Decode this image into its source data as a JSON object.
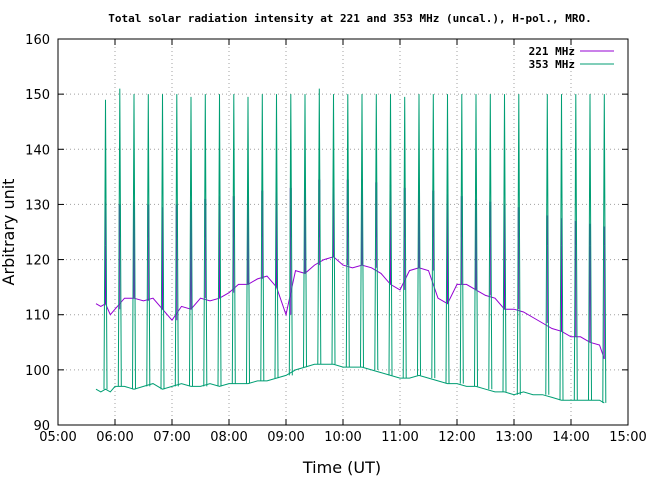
{
  "chart_data": {
    "type": "line",
    "title": "Total solar radiation intensity at 221 and 353 MHz (uncal.), H-pol., MRO.",
    "xlabel": "Time (UT)",
    "ylabel": "Arbitrary unit",
    "xlim": [
      "05:00",
      "15:00"
    ],
    "ylim": [
      90,
      160
    ],
    "x_ticks": [
      "05:00",
      "06:00",
      "07:00",
      "08:00",
      "09:00",
      "10:00",
      "11:00",
      "12:00",
      "13:00",
      "14:00",
      "15:00"
    ],
    "y_ticks": [
      "90",
      "100",
      "110",
      "120",
      "130",
      "140",
      "150",
      "160"
    ],
    "grid": true,
    "legend_position": "top-right",
    "colors": {
      "221 MHz": "#9400d3",
      "353 MHz": "#009e73"
    },
    "series": [
      {
        "name": "221 MHz",
        "color": "#9400d3",
        "x": [
          "05:40",
          "05:45",
          "05:50",
          "05:55",
          "06:00",
          "06:10",
          "06:20",
          "06:30",
          "06:40",
          "06:50",
          "07:00",
          "07:10",
          "07:20",
          "07:30",
          "07:40",
          "07:50",
          "08:00",
          "08:10",
          "08:20",
          "08:30",
          "08:40",
          "08:50",
          "09:00",
          "09:10",
          "09:20",
          "09:30",
          "09:40",
          "09:50",
          "10:00",
          "10:10",
          "10:20",
          "10:30",
          "10:40",
          "10:50",
          "11:00",
          "11:10",
          "11:20",
          "11:30",
          "11:40",
          "11:50",
          "12:00",
          "12:10",
          "12:20",
          "12:30",
          "12:40",
          "12:50",
          "13:00",
          "13:10",
          "13:20",
          "13:30",
          "13:40",
          "13:50",
          "14:00",
          "14:10",
          "14:20",
          "14:30",
          "14:35"
        ],
        "values": [
          112,
          111.5,
          112,
          110,
          111,
          113,
          113,
          112.5,
          113,
          111,
          109,
          111.5,
          111,
          113,
          112.5,
          113,
          114,
          115.5,
          115.5,
          116.5,
          117,
          115,
          110,
          118,
          117.5,
          119,
          120,
          120.5,
          119,
          118.5,
          119,
          118.5,
          117.5,
          115.5,
          114.5,
          118,
          118.5,
          118,
          113,
          112,
          115.5,
          115.5,
          114.5,
          113.5,
          113,
          111,
          111,
          110.5,
          109.5,
          108.5,
          107.5,
          107,
          106,
          106,
          105,
          104.5,
          102
        ]
      },
      {
        "name": "353 MHz",
        "color": "#009e73",
        "x": [
          "05:40",
          "05:45",
          "05:50",
          "05:55",
          "06:00",
          "06:10",
          "06:20",
          "06:30",
          "06:40",
          "06:50",
          "07:00",
          "07:10",
          "07:20",
          "07:30",
          "07:40",
          "07:50",
          "08:00",
          "08:10",
          "08:20",
          "08:30",
          "08:40",
          "08:50",
          "09:00",
          "09:10",
          "09:20",
          "09:30",
          "09:40",
          "09:50",
          "10:00",
          "10:10",
          "10:20",
          "10:30",
          "10:40",
          "10:50",
          "11:00",
          "11:10",
          "11:20",
          "11:30",
          "11:40",
          "11:50",
          "12:00",
          "12:10",
          "12:20",
          "12:30",
          "12:40",
          "12:50",
          "13:00",
          "13:10",
          "13:20",
          "13:30",
          "13:40",
          "13:50",
          "14:00",
          "14:10",
          "14:20",
          "14:30",
          "14:35"
        ],
        "values": [
          96.5,
          96,
          96.5,
          96,
          97,
          97,
          96.5,
          97,
          97.5,
          96.5,
          97,
          97.5,
          97,
          97,
          97.5,
          97,
          97.5,
          97.5,
          97.5,
          98,
          98,
          98.5,
          99,
          100,
          100.5,
          101,
          101,
          101,
          100.5,
          100.5,
          100.5,
          100,
          99.5,
          99,
          98.5,
          98.5,
          99,
          98.5,
          98,
          97.5,
          97.5,
          97,
          97,
          96.5,
          96,
          96,
          95.5,
          96,
          95.5,
          95.5,
          95,
          94.5,
          94.5,
          94.5,
          94.5,
          94.5,
          94
        ]
      }
    ],
    "calibration_pulses": {
      "times": [
        "05:50",
        "06:05",
        "06:20",
        "06:35",
        "06:50",
        "07:05",
        "07:20",
        "07:35",
        "07:50",
        "08:05",
        "08:20",
        "08:35",
        "08:50",
        "09:05",
        "09:20",
        "09:35",
        "09:50",
        "10:05",
        "10:20",
        "10:35",
        "10:50",
        "11:05",
        "11:20",
        "11:35",
        "11:50",
        "12:05",
        "12:20",
        "12:35",
        "12:50",
        "13:05",
        "13:35",
        "13:50",
        "14:05",
        "14:20",
        "14:35"
      ],
      "peak_353": [
        149,
        151,
        150,
        150,
        150,
        150,
        149.5,
        150,
        150,
        150,
        149.5,
        150,
        150,
        150,
        150,
        151,
        150,
        150,
        150,
        150,
        150,
        149.5,
        150,
        150,
        150,
        150,
        150,
        150,
        150,
        150,
        150,
        150,
        150,
        150,
        150
      ],
      "top_221": [
        130.5,
        130,
        130.5,
        130,
        129.5,
        130,
        130.5,
        131,
        131.5,
        131.5,
        132,
        132.5,
        133,
        133,
        133.5,
        134.5,
        134,
        134.5,
        134.5,
        134,
        133.5,
        133,
        133,
        132.5,
        132,
        131.5,
        131,
        130.5,
        130,
        129.5,
        128,
        127.5,
        127,
        126.5,
        126
      ],
      "bottom_221": [
        122.5,
        124,
        124,
        124,
        124,
        124,
        124,
        124,
        124,
        124,
        124,
        124,
        124,
        124,
        124,
        124,
        124,
        124,
        124,
        124,
        124,
        124,
        124,
        124,
        124,
        124,
        124,
        124,
        124,
        124,
        122.5,
        122.5,
        122.5,
        122.5,
        122.5
      ]
    }
  }
}
